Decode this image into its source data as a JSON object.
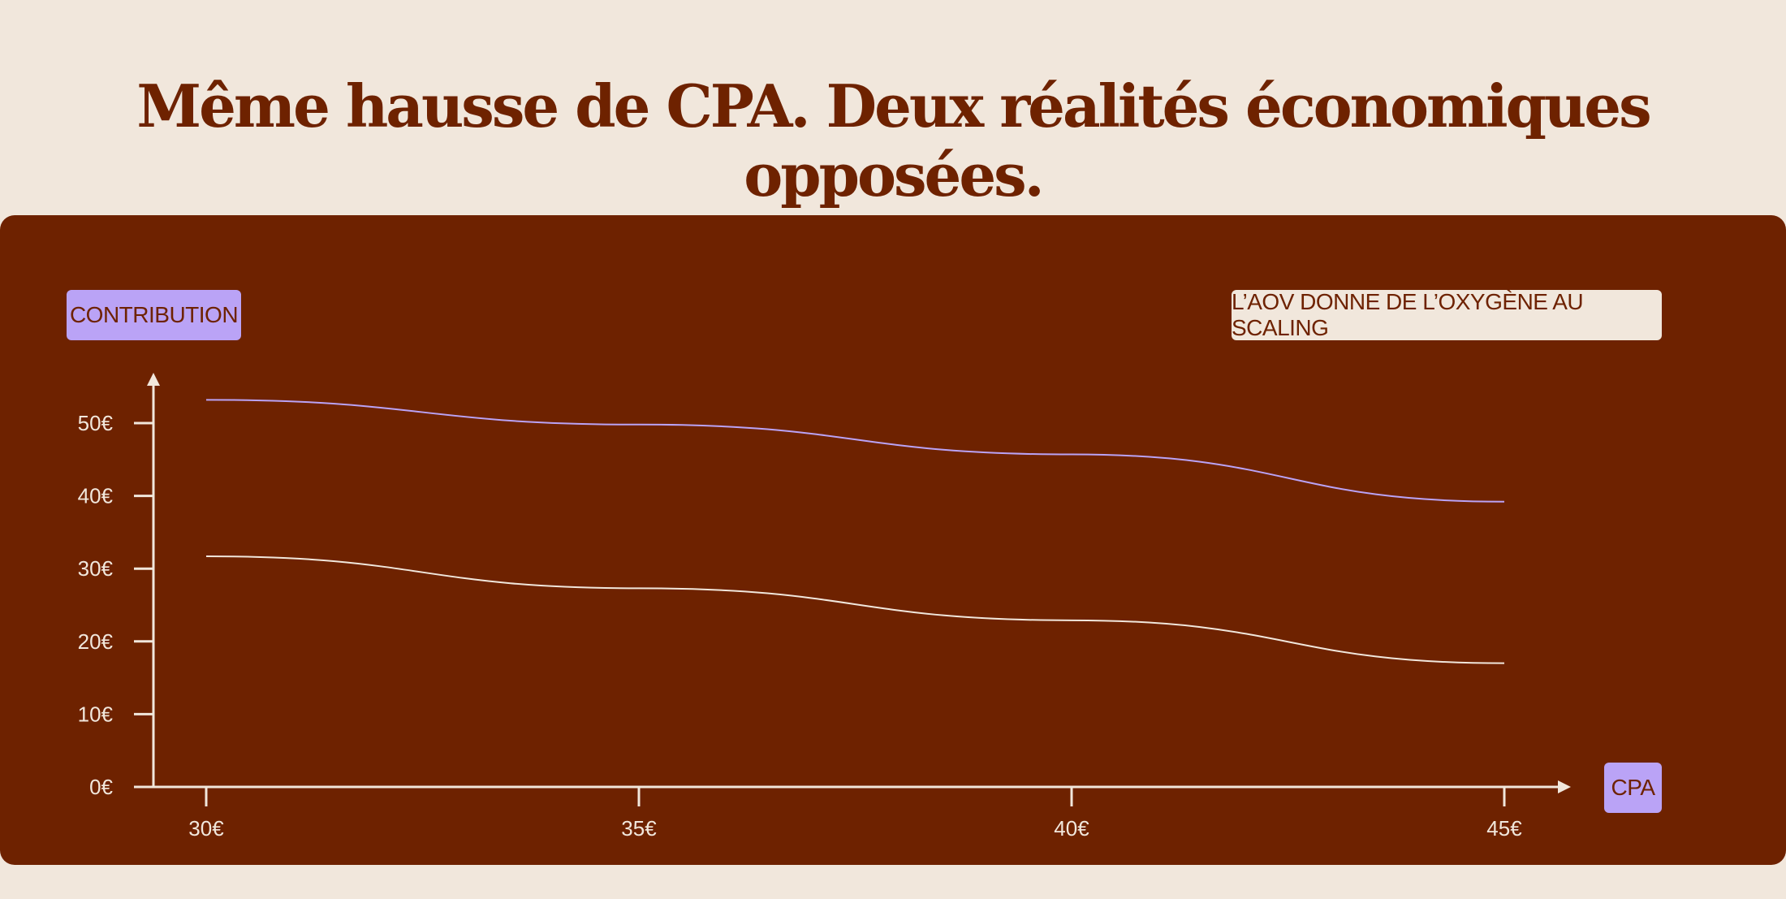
{
  "title": "Même hausse de CPA. Deux réalités économiques opposées.",
  "colors": {
    "background": "#f1e7dc",
    "panel": "#6e2200",
    "accent": "#baa3f6",
    "axis": "#f1e7dc",
    "text_dark": "#6e2200"
  },
  "chart_data": {
    "type": "line",
    "ylabel": "CONTRIBUTION",
    "xlabel": "CPA",
    "annotation": "L’AOV DONNE DE L’OXYGÈNE AU SCALING",
    "x": [
      30,
      35,
      40,
      45
    ],
    "x_tick_labels": [
      "30€",
      "35€",
      "40€",
      "45€"
    ],
    "y_ticks": [
      0,
      10,
      20,
      30,
      40,
      50
    ],
    "y_tick_labels": [
      "0€",
      "10€",
      "20€",
      "30€",
      "40€",
      "50€"
    ],
    "xlim": [
      29.3,
      46
    ],
    "ylim": [
      0,
      55
    ],
    "grid": false,
    "series": [
      {
        "values": [
          53.2,
          49.8,
          45.7,
          39.2
        ],
        "color": "#baa3f6"
      },
      {
        "values": [
          31.7,
          27.3,
          22.9,
          17.0
        ],
        "color": "#f1e7dc"
      }
    ]
  }
}
